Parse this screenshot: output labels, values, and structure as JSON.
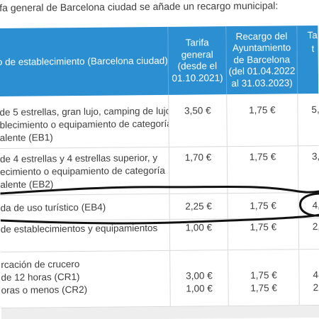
{
  "intro_text": "ifa general de Barcelona ciudad se añade un recargo municipal:",
  "header": {
    "col1": "o de establecimiento (Barcelona ciudad)",
    "col2": [
      "Tarifa",
      "general",
      "(desde el",
      "01.10.2021)"
    ],
    "col3": [
      "Recargo del",
      "Ayuntamiento",
      "de Barcelona",
      "(del 01.04.2022",
      "al 31.03.2023)"
    ],
    "col4": [
      "Ta",
      "t"
    ]
  },
  "rows": [
    {
      "desc": [
        "de 5 estrellas, gran lujo, camping de lujo",
        "blecimiento o equipamiento de categoría",
        "alente (EB1)"
      ],
      "tarifa": [
        "3,50 €"
      ],
      "recargo": [
        "1,75 €"
      ],
      "total": [
        "5,"
      ]
    },
    {
      "desc": [
        "de 4 estrellas y 4 estrellas superior, y",
        "ecimiento o equipamiento de categoría",
        "alente (EB2)"
      ],
      "tarifa": [
        "1,70 €"
      ],
      "recargo": [
        "1,75 €"
      ],
      "total": [
        "3,"
      ]
    },
    {
      "desc": [
        "da de uso turístico (EB4)"
      ],
      "tarifa": [
        "2,25 €"
      ],
      "recargo": [
        "1,75 €"
      ],
      "total": [
        "4,"
      ]
    },
    {
      "desc": [
        "de establecimientos y equipamientos"
      ],
      "tarifa": [
        "1,00 €"
      ],
      "recargo": [
        "1,75 €"
      ],
      "total": [
        "2,"
      ]
    },
    {
      "desc": [
        "rcación de crucero",
        "de 12 horas  (CR1)",
        "oras o menos (CR2)"
      ],
      "tarifa": [
        "",
        "3,00 €",
        "1,00 €"
      ],
      "recargo": [
        "",
        "1,75 €",
        "1,75 €"
      ],
      "total": [
        "",
        "4,",
        "2,"
      ]
    }
  ],
  "colors": {
    "header_bg": "#2b8fd2",
    "header_text": "#ffffff",
    "body_text": "#3d3d3d",
    "grid": "#d9d9d9",
    "ink": "#111111"
  }
}
